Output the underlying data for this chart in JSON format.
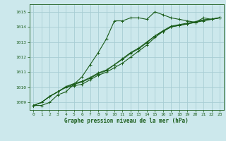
{
  "xlabel": "Graphe pression niveau de la mer (hPa)",
  "background_color": "#cce8ec",
  "grid_color": "#a8cdd4",
  "line_color": "#1a5c1a",
  "xlim": [
    -0.5,
    23.5
  ],
  "ylim": [
    1008.5,
    1015.5
  ],
  "yticks": [
    1009,
    1010,
    1011,
    1012,
    1013,
    1014,
    1015
  ],
  "xticks": [
    0,
    1,
    2,
    3,
    4,
    5,
    6,
    7,
    8,
    9,
    10,
    11,
    12,
    13,
    14,
    15,
    16,
    17,
    18,
    19,
    20,
    21,
    22,
    23
  ],
  "series": [
    [
      1008.8,
      1008.8,
      1009.0,
      1009.5,
      1009.7,
      1010.2,
      1010.7,
      1011.5,
      1012.3,
      1013.2,
      1014.4,
      1014.4,
      1014.6,
      1014.6,
      1014.5,
      1015.0,
      1014.8,
      1014.6,
      1014.5,
      1014.4,
      1014.3,
      1014.6,
      1014.5,
      1014.6
    ],
    [
      1008.8,
      1009.0,
      1009.4,
      1009.7,
      1010.0,
      1010.1,
      1010.2,
      1010.5,
      1010.8,
      1011.0,
      1011.3,
      1011.6,
      1012.0,
      1012.4,
      1012.8,
      1013.3,
      1013.7,
      1014.0,
      1014.1,
      1014.2,
      1014.3,
      1014.4,
      1014.5,
      1014.6
    ],
    [
      1008.8,
      1009.0,
      1009.4,
      1009.7,
      1010.0,
      1010.2,
      1010.35,
      1010.6,
      1010.9,
      1011.1,
      1011.5,
      1011.9,
      1012.3,
      1012.6,
      1013.0,
      1013.4,
      1013.7,
      1014.0,
      1014.1,
      1014.2,
      1014.3,
      1014.45,
      1014.5,
      1014.6
    ],
    [
      1008.8,
      1009.0,
      1009.4,
      1009.7,
      1010.05,
      1010.25,
      1010.4,
      1010.65,
      1010.95,
      1011.15,
      1011.5,
      1011.85,
      1012.25,
      1012.55,
      1012.95,
      1013.4,
      1013.75,
      1014.05,
      1014.15,
      1014.25,
      1014.35,
      1014.47,
      1014.52,
      1014.62
    ]
  ]
}
